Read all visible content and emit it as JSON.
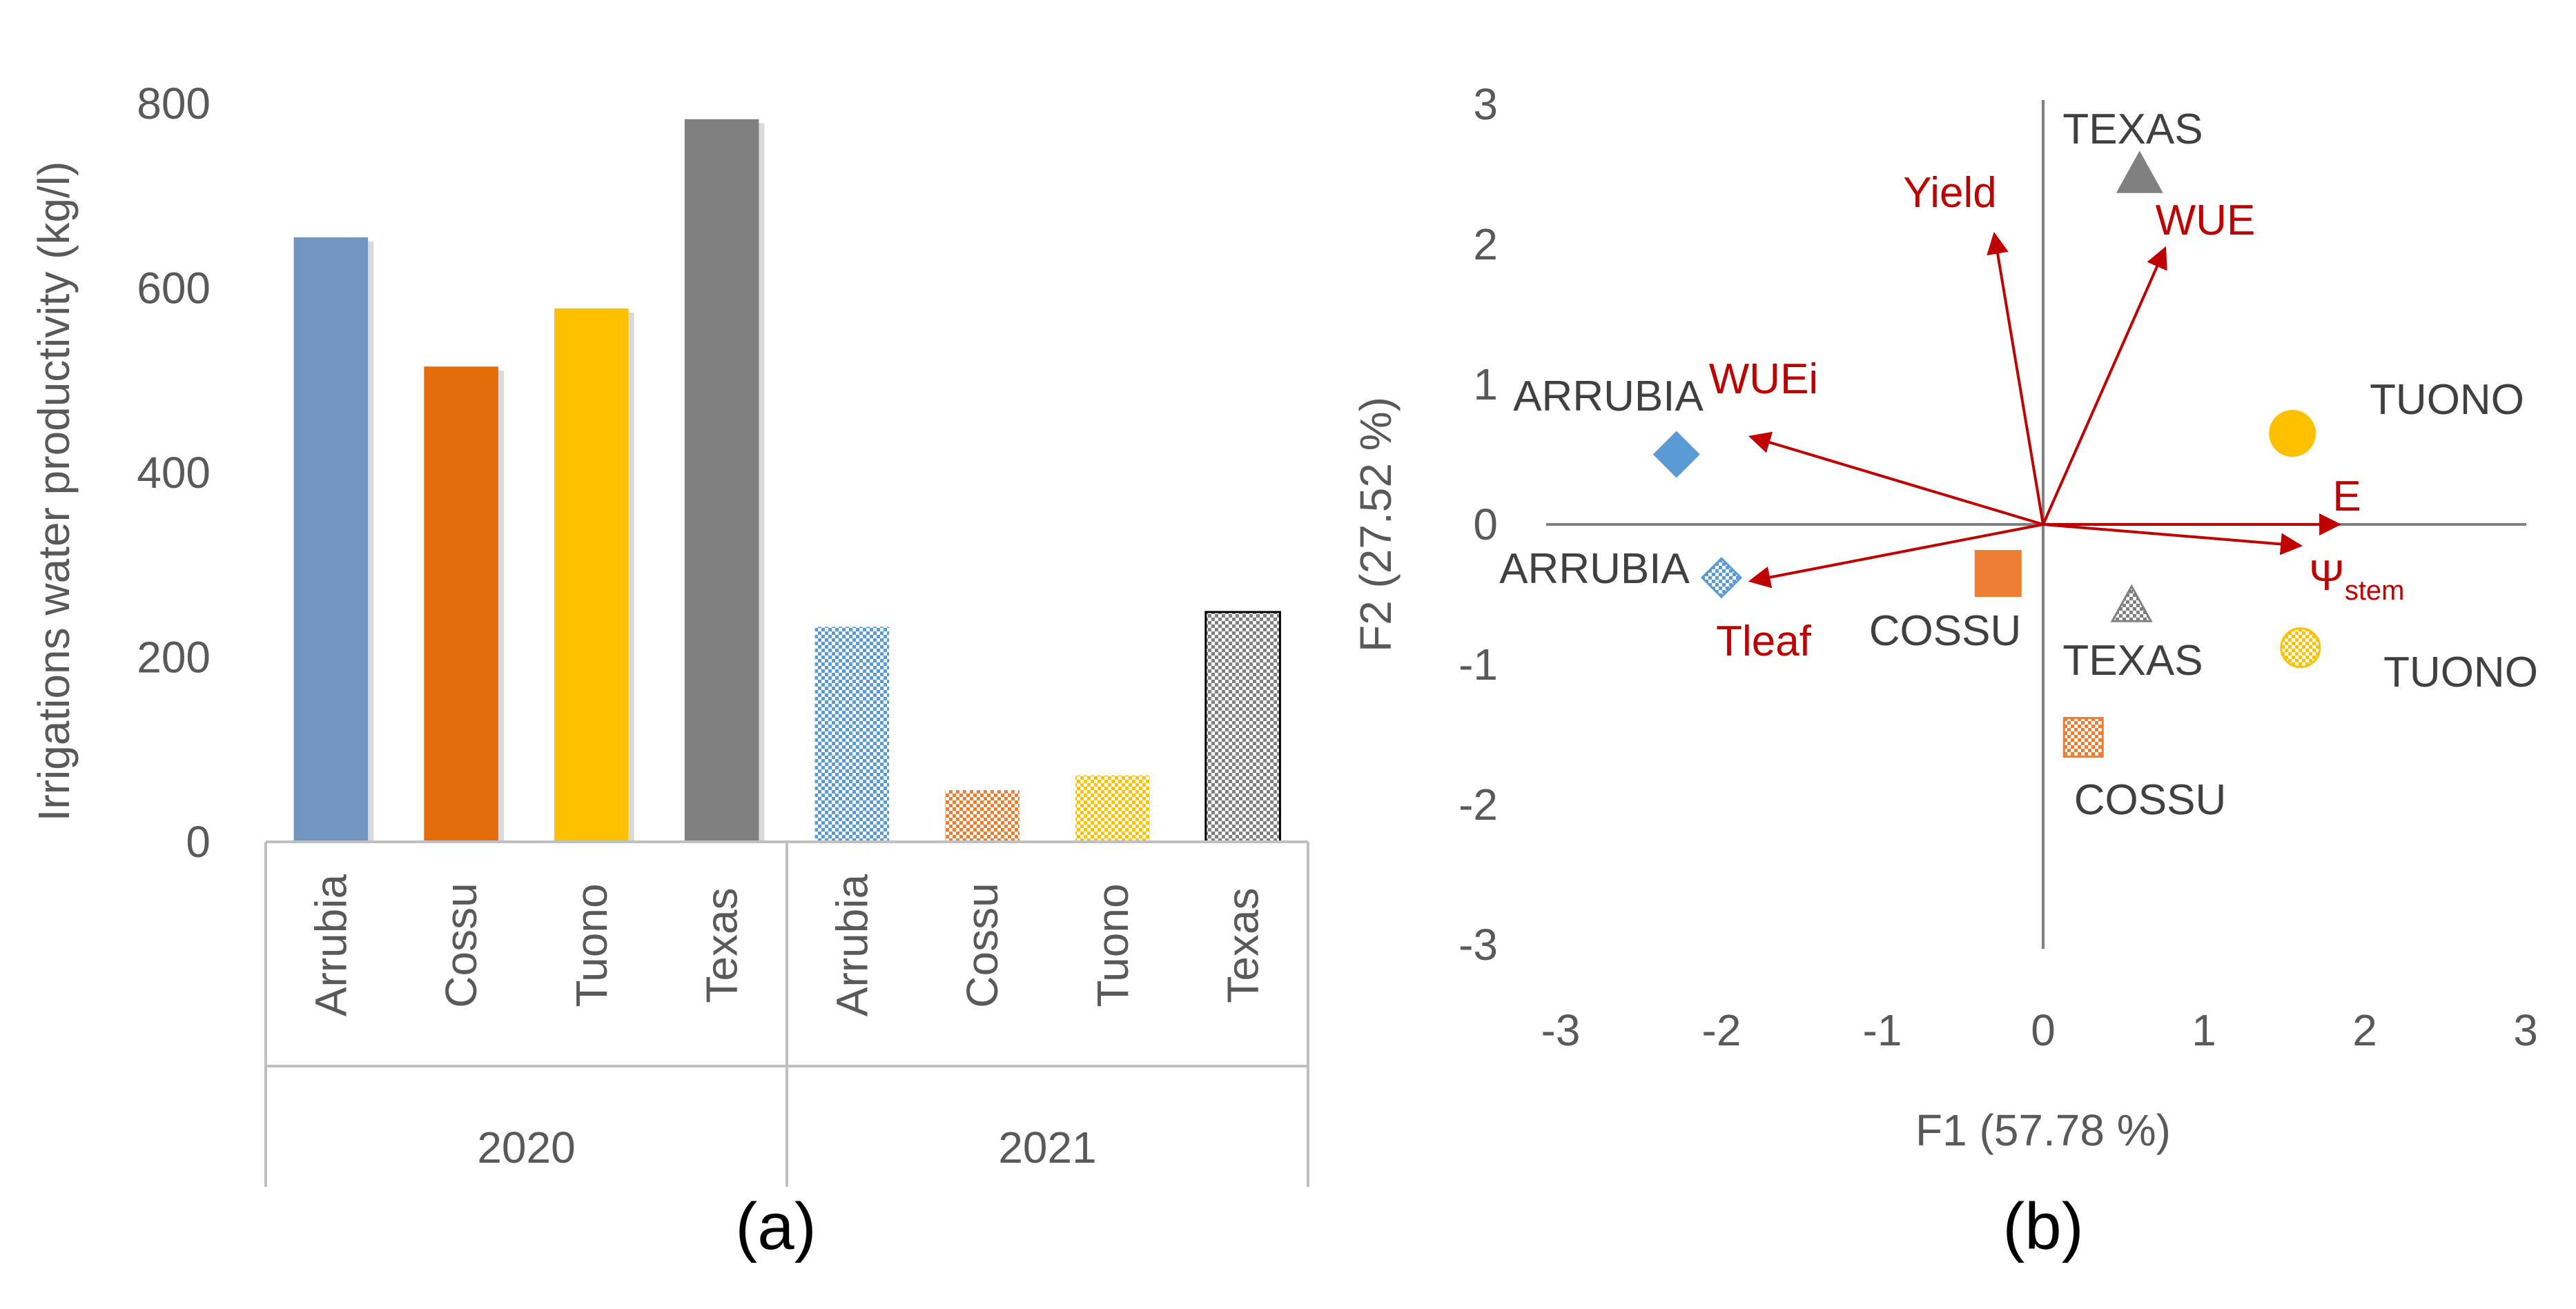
{
  "chart_data": [
    {
      "panel": "a",
      "type": "bar",
      "ylabel": "Irrigations water productivity (kg/l)",
      "ylim": [
        0,
        800
      ],
      "yticks": [
        0,
        200,
        400,
        600,
        800
      ],
      "groups": [
        {
          "label": "2020",
          "pattern": "solid",
          "categories": [
            "Arrubia",
            "Cossu",
            "Tuono",
            "Texas"
          ],
          "values": [
            655,
            515,
            578,
            783
          ]
        },
        {
          "label": "2021",
          "pattern": "checkered",
          "categories": [
            "Arrubia",
            "Cossu",
            "Tuono",
            "Texas"
          ],
          "values": [
            233,
            56,
            72,
            249
          ]
        }
      ],
      "colors": [
        "#7295c2",
        "#e46c0a",
        "#ffc000",
        "#808080"
      ],
      "panel_label": "(a)"
    },
    {
      "panel": "b",
      "type": "scatter",
      "xlabel": "F1 (57.78 %)",
      "ylabel": "F2 (27.52 %)",
      "xlim": [
        -3,
        3
      ],
      "ylim": [
        -3,
        3
      ],
      "xticks": [
        -3,
        -2,
        -1,
        0,
        1,
        2,
        3
      ],
      "yticks": [
        -3,
        -2,
        -1,
        0,
        1,
        2,
        3
      ],
      "points": [
        {
          "label": "TEXAS",
          "marker": "triangle",
          "pattern": "solid",
          "color": "#808080",
          "x": 0.6,
          "y": 2.5
        },
        {
          "label": "TUONO",
          "marker": "circle",
          "pattern": "solid",
          "color": "#ffc000",
          "x": 1.55,
          "y": 0.65
        },
        {
          "label": "ARRUBIA",
          "marker": "diamond",
          "pattern": "solid",
          "color": "#5b9bd5",
          "x": -2.28,
          "y": 0.5
        },
        {
          "label": "COSSU",
          "marker": "square",
          "pattern": "solid",
          "color": "#ed7d31",
          "x": -0.28,
          "y": -0.35
        },
        {
          "label": "ARRUBIA",
          "marker": "diamond",
          "pattern": "checkered",
          "color": "#5b9bd5",
          "x": -2.0,
          "y": -0.38
        },
        {
          "label": "TEXAS",
          "marker": "triangle",
          "pattern": "checkered",
          "color": "#808080",
          "x": 0.55,
          "y": -0.58
        },
        {
          "label": "TUONO",
          "marker": "circle",
          "pattern": "checkered",
          "color": "#ffc000",
          "x": 1.6,
          "y": -0.88
        },
        {
          "label": "COSSU",
          "marker": "square",
          "pattern": "checkered",
          "color": "#ed7d31",
          "x": 0.25,
          "y": -1.52
        }
      ],
      "vectors": [
        {
          "label": "Yield",
          "x": -0.3,
          "y": 2.05
        },
        {
          "label": "WUE",
          "x": 0.75,
          "y": 1.95
        },
        {
          "label": "WUEi",
          "x": -1.8,
          "y": 0.62
        },
        {
          "label": "E",
          "x": 1.82,
          "y": 0.0
        },
        {
          "label": "Ψ",
          "subscript": "stem",
          "x": 1.58,
          "y": -0.15
        },
        {
          "label": "Tleaf",
          "x": -1.8,
          "y": -0.4
        }
      ],
      "vector_color": "#c00000",
      "panel_label": "(b)"
    }
  ]
}
